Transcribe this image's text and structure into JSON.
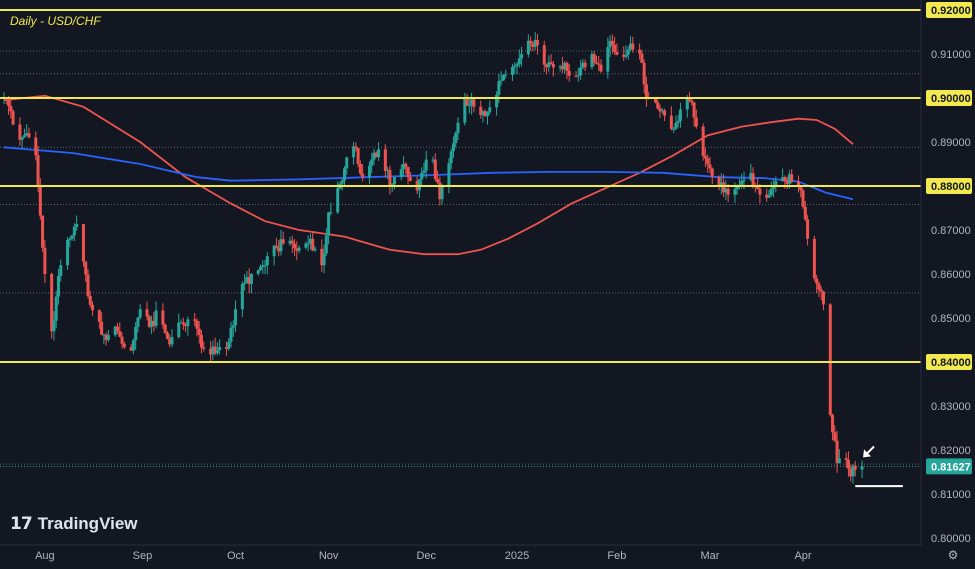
{
  "chart_data": {
    "type": "candlestick",
    "title": "Daily - USD/CHF",
    "ylim": [
      0.8,
      0.92
    ],
    "y_ticks": [
      "0.92000",
      "0.91000",
      "0.90000",
      "0.89000",
      "0.88000",
      "0.87000",
      "0.86000",
      "0.85000",
      "0.84000",
      "0.83000",
      "0.82000",
      "0.81000",
      "0.80000"
    ],
    "x_ticks": [
      "Aug",
      "Sep",
      "Oct",
      "Nov",
      "Dec",
      "2025",
      "Feb",
      "Mar",
      "Apr"
    ],
    "x_tick_days": [
      18,
      61,
      102,
      143,
      186,
      226,
      270,
      311,
      352
    ],
    "total_days": 388,
    "last_price": "0.81627",
    "highlighted_levels": [
      "0.92000",
      "0.90000",
      "0.88000",
      "0.84000"
    ],
    "dotted_levels": [
      0.9107,
      0.9055,
      0.8888,
      0.8758,
      0.8557,
      0.8168
    ],
    "support_line": {
      "day_start": 375,
      "day_end": 396,
      "value": 0.8118
    },
    "annotation": "white arrow pointing at latest candle",
    "series": [
      {
        "type": "candles",
        "colors": {
          "up": "#26a69a",
          "down": "#ef5350"
        },
        "anchors": [
          [
            0,
            0.9
          ],
          [
            3,
            0.897
          ],
          [
            6,
            0.89
          ],
          [
            10,
            0.892
          ],
          [
            14,
            0.887
          ],
          [
            18,
            0.86
          ],
          [
            21,
            0.847
          ],
          [
            25,
            0.862
          ],
          [
            29,
            0.868
          ],
          [
            33,
            0.873
          ],
          [
            37,
            0.855
          ],
          [
            41,
            0.85
          ],
          [
            45,
            0.845
          ],
          [
            50,
            0.847
          ],
          [
            55,
            0.841
          ],
          [
            60,
            0.852
          ],
          [
            64,
            0.848
          ],
          [
            68,
            0.851
          ],
          [
            73,
            0.844
          ],
          [
            78,
            0.849
          ],
          [
            83,
            0.85
          ],
          [
            88,
            0.843
          ],
          [
            93,
            0.842
          ],
          [
            98,
            0.843
          ],
          [
            102,
            0.852
          ],
          [
            106,
            0.858
          ],
          [
            110,
            0.86
          ],
          [
            115,
            0.862
          ],
          [
            120,
            0.866
          ],
          [
            125,
            0.867
          ],
          [
            130,
            0.866
          ],
          [
            135,
            0.868
          ],
          [
            140,
            0.862
          ],
          [
            143,
            0.874
          ],
          [
            146,
            0.878
          ],
          [
            150,
            0.884
          ],
          [
            154,
            0.889
          ],
          [
            158,
            0.882
          ],
          [
            162,
            0.886
          ],
          [
            166,
            0.889
          ],
          [
            170,
            0.88
          ],
          [
            174,
            0.886
          ],
          [
            178,
            0.882
          ],
          [
            182,
            0.879
          ],
          [
            186,
            0.886
          ],
          [
            189,
            0.886
          ],
          [
            192,
            0.877
          ],
          [
            195,
            0.882
          ],
          [
            199,
            0.892
          ],
          [
            203,
            0.9
          ],
          [
            207,
            0.898
          ],
          [
            211,
            0.897
          ],
          [
            215,
            0.898
          ],
          [
            219,
            0.904
          ],
          [
            223,
            0.905
          ],
          [
            227,
            0.909
          ],
          [
            231,
            0.913
          ],
          [
            235,
            0.912
          ],
          [
            239,
            0.907
          ],
          [
            243,
            0.906
          ],
          [
            247,
            0.908
          ],
          [
            251,
            0.904
          ],
          [
            255,
            0.908
          ],
          [
            259,
            0.91
          ],
          [
            263,
            0.906
          ],
          [
            267,
            0.913
          ],
          [
            271,
            0.909
          ],
          [
            275,
            0.911
          ],
          [
            279,
            0.913
          ],
          [
            283,
            0.9
          ],
          [
            287,
            0.899
          ],
          [
            291,
            0.896
          ],
          [
            295,
            0.893
          ],
          [
            299,
            0.898
          ],
          [
            303,
            0.899
          ],
          [
            307,
            0.886
          ],
          [
            311,
            0.884
          ],
          [
            315,
            0.88
          ],
          [
            319,
            0.878
          ],
          [
            323,
            0.88
          ],
          [
            327,
            0.883
          ],
          [
            331,
            0.88
          ],
          [
            335,
            0.878
          ],
          [
            339,
            0.88
          ],
          [
            343,
            0.882
          ],
          [
            347,
            0.881
          ],
          [
            351,
            0.879
          ],
          [
            354,
            0.868
          ],
          [
            357,
            0.859
          ],
          [
            360,
            0.856
          ],
          [
            362,
            0.849
          ],
          [
            364,
            0.828
          ],
          [
            367,
            0.817
          ],
          [
            370,
            0.819
          ],
          [
            373,
            0.814
          ],
          [
            376,
            0.817
          ],
          [
            378,
            0.8163
          ]
        ]
      },
      {
        "type": "line",
        "color": "#ef5350",
        "points": [
          [
            0,
            0.8995
          ],
          [
            18,
            0.9005
          ],
          [
            35,
            0.898
          ],
          [
            60,
            0.89
          ],
          [
            80,
            0.882
          ],
          [
            100,
            0.876
          ],
          [
            115,
            0.872
          ],
          [
            130,
            0.87
          ],
          [
            150,
            0.8685
          ],
          [
            170,
            0.8655
          ],
          [
            185,
            0.8645
          ],
          [
            200,
            0.8645
          ],
          [
            210,
            0.8655
          ],
          [
            222,
            0.868
          ],
          [
            235,
            0.8715
          ],
          [
            250,
            0.876
          ],
          [
            265,
            0.8795
          ],
          [
            280,
            0.883
          ],
          [
            295,
            0.887
          ],
          [
            310,
            0.8915
          ],
          [
            325,
            0.8935
          ],
          [
            338,
            0.8945
          ],
          [
            350,
            0.8953
          ],
          [
            358,
            0.895
          ],
          [
            366,
            0.893
          ],
          [
            374,
            0.8895
          ]
        ]
      },
      {
        "type": "line",
        "color": "#2962ff",
        "points": [
          [
            0,
            0.8888
          ],
          [
            30,
            0.8875
          ],
          [
            60,
            0.885
          ],
          [
            85,
            0.882
          ],
          [
            100,
            0.8812
          ],
          [
            130,
            0.8815
          ],
          [
            160,
            0.882
          ],
          [
            190,
            0.8825
          ],
          [
            215,
            0.883
          ],
          [
            240,
            0.8832
          ],
          [
            265,
            0.8832
          ],
          [
            290,
            0.883
          ],
          [
            315,
            0.882
          ],
          [
            335,
            0.8818
          ],
          [
            350,
            0.881
          ],
          [
            362,
            0.8785
          ],
          [
            374,
            0.877
          ]
        ]
      }
    ]
  },
  "branding": {
    "name": "TradingView"
  }
}
